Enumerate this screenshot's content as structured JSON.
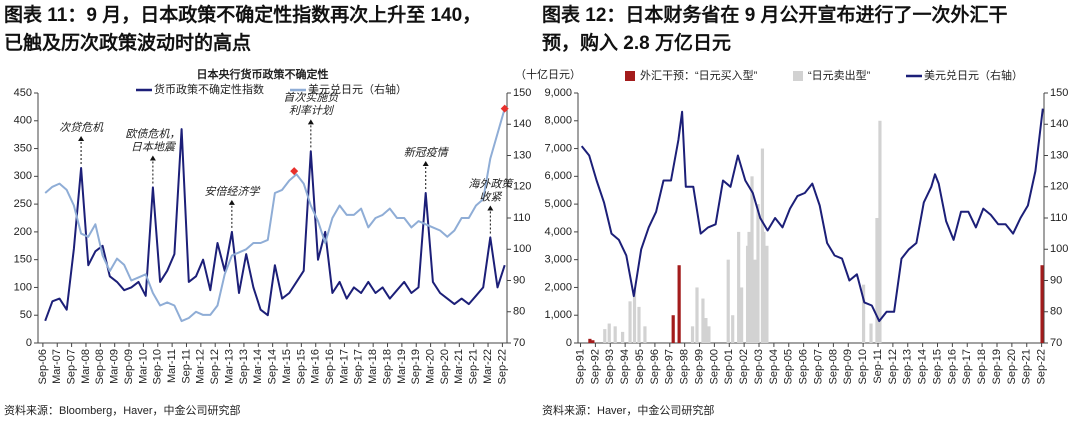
{
  "chart_data": [
    {
      "type": "line",
      "title": [
        "图表 11：9 月，日本政策不确定性指数再次上升至 140，",
        "已触及历次政策波动时的高点"
      ],
      "subtitle": "日本央行货币政策不确定性",
      "source": "资料来源：Bloomberg，Haver，中金公司研究部",
      "xlim": [
        2006.5,
        2022.83
      ],
      "ylim": [
        0,
        450
      ],
      "y2lim": [
        70,
        150
      ],
      "yticks": [
        0,
        50,
        100,
        150,
        200,
        250,
        300,
        350,
        400,
        450
      ],
      "y2ticks": [
        70,
        80,
        90,
        100,
        110,
        120,
        130,
        140,
        150
      ],
      "xticks": [
        {
          "value": 2006.67,
          "label": "Sep-06"
        },
        {
          "value": 2007.17,
          "label": "Mar-07"
        },
        {
          "value": 2007.67,
          "label": "Sep-07"
        },
        {
          "value": 2008.17,
          "label": "Mar-08"
        },
        {
          "value": 2008.67,
          "label": "Sep-08"
        },
        {
          "value": 2009.17,
          "label": "Mar-09"
        },
        {
          "value": 2009.67,
          "label": "Sep-09"
        },
        {
          "value": 2010.17,
          "label": "Mar-10"
        },
        {
          "value": 2010.67,
          "label": "Sep-10"
        },
        {
          "value": 2011.17,
          "label": "Mar-11"
        },
        {
          "value": 2011.67,
          "label": "Sep-11"
        },
        {
          "value": 2012.17,
          "label": "Mar-12"
        },
        {
          "value": 2012.67,
          "label": "Sep-12"
        },
        {
          "value": 2013.17,
          "label": "Mar-13"
        },
        {
          "value": 2013.67,
          "label": "Sep-13"
        },
        {
          "value": 2014.17,
          "label": "Mar-14"
        },
        {
          "value": 2014.67,
          "label": "Sep-14"
        },
        {
          "value": 2015.17,
          "label": "Mar-15"
        },
        {
          "value": 2015.67,
          "label": "Sep-15"
        },
        {
          "value": 2016.17,
          "label": "Mar-16"
        },
        {
          "value": 2016.67,
          "label": "Sep-16"
        },
        {
          "value": 2017.17,
          "label": "Mar-17"
        },
        {
          "value": 2017.67,
          "label": "Sep-17"
        },
        {
          "value": 2018.17,
          "label": "Mar-18"
        },
        {
          "value": 2018.67,
          "label": "Sep-18"
        },
        {
          "value": 2019.17,
          "label": "Mar-19"
        },
        {
          "value": 2019.67,
          "label": "Sep-19"
        },
        {
          "value": 2020.17,
          "label": "Mar-20"
        },
        {
          "value": 2020.67,
          "label": "Sep-20"
        },
        {
          "value": 2021.17,
          "label": "Mar-21"
        },
        {
          "value": 2021.67,
          "label": "Sep-21"
        },
        {
          "value": 2022.17,
          "label": "Mar-22"
        },
        {
          "value": 2022.67,
          "label": "Sep-22"
        }
      ],
      "x": [
        2006.75,
        2007,
        2007.25,
        2007.5,
        2007.75,
        2008,
        2008.25,
        2008.5,
        2008.75,
        2009,
        2009.25,
        2009.5,
        2009.75,
        2010,
        2010.25,
        2010.5,
        2010.75,
        2011,
        2011.25,
        2011.5,
        2011.75,
        2012,
        2012.25,
        2012.5,
        2012.75,
        2013,
        2013.25,
        2013.5,
        2013.75,
        2014,
        2014.25,
        2014.5,
        2014.75,
        2015,
        2015.25,
        2015.5,
        2015.75,
        2016,
        2016.25,
        2016.5,
        2016.75,
        2017,
        2017.25,
        2017.5,
        2017.75,
        2018,
        2018.25,
        2018.5,
        2018.75,
        2019,
        2019.25,
        2019.5,
        2019.75,
        2020,
        2020.25,
        2020.5,
        2020.75,
        2021,
        2021.25,
        2021.5,
        2021.75,
        2022,
        2022.25,
        2022.5,
        2022.75
      ],
      "series": [
        {
          "name": "货币政策不确定性指数",
          "color": "#1c1f78",
          "values": [
            40,
            75,
            80,
            60,
            170,
            315,
            140,
            165,
            175,
            120,
            110,
            95,
            100,
            110,
            85,
            280,
            110,
            130,
            160,
            385,
            110,
            120,
            150,
            95,
            180,
            130,
            200,
            90,
            160,
            100,
            60,
            50,
            140,
            80,
            90,
            110,
            130,
            345,
            150,
            200,
            90,
            110,
            80,
            100,
            90,
            110,
            90,
            100,
            80,
            95,
            110,
            90,
            100,
            270,
            110,
            90,
            80,
            70,
            80,
            70,
            85,
            100,
            190,
            100,
            140
          ]
        },
        {
          "name": "美元兑日元（右轴）",
          "color": "#8fadd6",
          "axis": "y2",
          "values": [
            118,
            120,
            121,
            119,
            114,
            105,
            104,
            108,
            98,
            93,
            97,
            95,
            90,
            91,
            92,
            86,
            82,
            83,
            82,
            77,
            78,
            80,
            79,
            79,
            82,
            92,
            98,
            99,
            100,
            102,
            102,
            103,
            118,
            119,
            122,
            124,
            121,
            114,
            109,
            102,
            110,
            114,
            111,
            111,
            113,
            107,
            110,
            111,
            113,
            110,
            110,
            107,
            109,
            108,
            107,
            106,
            104,
            106,
            110,
            110,
            114,
            116,
            129,
            137,
            145
          ]
        }
      ],
      "highlights": {
        "color": "#e8302c",
        "axis": "y2",
        "x": [
          2015.42,
          2022.75
        ],
        "values": [
          125,
          145
        ]
      },
      "annotations": [
        {
          "text": [
            "次贷危机"
          ],
          "x": 2008,
          "y": 315
        },
        {
          "text": [
            "欧债危机，",
            "日本地震"
          ],
          "x": 2010.5,
          "y": 280
        },
        {
          "text": [
            "安倍经济学"
          ],
          "x": 2013.25,
          "y": 200
        },
        {
          "text": [
            "首次实施负",
            "利率计划"
          ],
          "x": 2016,
          "y": 345
        },
        {
          "text": [
            "新冠疫情"
          ],
          "x": 2020,
          "y": 270
        },
        {
          "text": [
            "海外政策",
            "收紧"
          ],
          "x": 2022.25,
          "y": 190
        }
      ]
    },
    {
      "type": "combo",
      "title": [
        "图表 12：日本财务省在 9 月公开宣布进行了一次外汇干",
        "预，购入 2.8 万亿日元"
      ],
      "ylabel": "（十亿日元）",
      "source": "资料来源：Haver，中金公司研究部",
      "xlim": [
        1991.5,
        2022.83
      ],
      "ylim": [
        0,
        9000
      ],
      "y2lim": [
        70,
        150
      ],
      "yticks": [
        0,
        {
          "value": 1000,
          "label": "1,000"
        },
        {
          "value": 2000,
          "label": "2,000"
        },
        {
          "value": 3000,
          "label": "3,000"
        },
        {
          "value": 4000,
          "label": "4,000"
        },
        {
          "value": 5000,
          "label": "5,000"
        },
        {
          "value": 6000,
          "label": "6,000"
        },
        {
          "value": 7000,
          "label": "7,000"
        },
        {
          "value": 8000,
          "label": "8,000"
        },
        {
          "value": 9000,
          "label": "9,000"
        }
      ],
      "y2ticks": [
        70,
        80,
        90,
        100,
        110,
        120,
        130,
        140,
        150
      ],
      "xticks": [
        {
          "value": 1991.67,
          "label": "Sep-91"
        },
        {
          "value": 1992.67,
          "label": "Sep-92"
        },
        {
          "value": 1993.67,
          "label": "Sep-93"
        },
        {
          "value": 1994.67,
          "label": "Sep-94"
        },
        {
          "value": 1995.67,
          "label": "Sep-95"
        },
        {
          "value": 1996.67,
          "label": "Sep-96"
        },
        {
          "value": 1997.67,
          "label": "Sep-97"
        },
        {
          "value": 1998.67,
          "label": "Sep-98"
        },
        {
          "value": 1999.67,
          "label": "Sep-99"
        },
        {
          "value": 2000.67,
          "label": "Sep-00"
        },
        {
          "value": 2001.67,
          "label": "Sep-01"
        },
        {
          "value": 2002.67,
          "label": "Sep-02"
        },
        {
          "value": 2003.67,
          "label": "Sep-03"
        },
        {
          "value": 2004.67,
          "label": "Sep-04"
        },
        {
          "value": 2005.67,
          "label": "Sep-05"
        },
        {
          "value": 2006.67,
          "label": "Sep-06"
        },
        {
          "value": 2007.67,
          "label": "Sep-07"
        },
        {
          "value": 2008.67,
          "label": "Sep-08"
        },
        {
          "value": 2009.67,
          "label": "Sep-09"
        },
        {
          "value": 2010.67,
          "label": "Sep-10"
        },
        {
          "value": 2011.67,
          "label": "Sep-11"
        },
        {
          "value": 2012.67,
          "label": "Sep-12"
        },
        {
          "value": 2013.67,
          "label": "Sep-13"
        },
        {
          "value": 2014.67,
          "label": "Sep-14"
        },
        {
          "value": 2015.67,
          "label": "Sep-15"
        },
        {
          "value": 2016.67,
          "label": "Sep-16"
        },
        {
          "value": 2017.67,
          "label": "Sep-17"
        },
        {
          "value": 2018.67,
          "label": "Sep-18"
        },
        {
          "value": 2019.67,
          "label": "Sep-19"
        },
        {
          "value": 2020.67,
          "label": "Sep-20"
        },
        {
          "value": 2021.67,
          "label": "Sep-21"
        },
        {
          "value": 2022.67,
          "label": "Sep-22"
        }
      ],
      "bars": [
        {
          "name": "外汇干预：“日元买入型”",
          "color": "#a31c1c",
          "x": [
            1992.3,
            1992.5,
            1997.9,
            1998.3,
            2022.7
          ],
          "values": [
            150,
            100,
            1000,
            2800,
            2800
          ]
        },
        {
          "name": "“日元卖出型”",
          "color": "#d2d2d2",
          "x": [
            1993.3,
            1993.6,
            1994.0,
            1994.5,
            1995.0,
            1995.3,
            1995.6,
            1996.0,
            1999.2,
            1999.5,
            1999.9,
            2000.1,
            2000.3,
            2001.6,
            2001.9,
            2002.3,
            2002.5,
            2002.9,
            2003.0,
            2003.2,
            2003.4,
            2003.6,
            2003.9,
            2004.0,
            2004.2,
            2010.7,
            2011.2,
            2011.6,
            2011.8
          ],
          "values": [
            500,
            700,
            600,
            400,
            1500,
            1900,
            1300,
            600,
            600,
            2000,
            1600,
            900,
            600,
            3000,
            1000,
            4000,
            2000,
            3500,
            4000,
            6000,
            3000,
            5000,
            7000,
            4000,
            3500,
            2100,
            700,
            4500,
            8000
          ]
        }
      ],
      "series": [
        {
          "name": "美元兑日元（右轴）",
          "color": "#1c1f78",
          "axis": "y2",
          "x": [
            1991.75,
            1992.25,
            1992.75,
            1993.25,
            1993.75,
            1994.25,
            1994.75,
            1995.25,
            1995.75,
            1996.25,
            1996.75,
            1997.25,
            1997.75,
            1998.25,
            1998.5,
            1998.75,
            1999.25,
            1999.75,
            2000.25,
            2000.75,
            2001.25,
            2001.75,
            2002.25,
            2002.75,
            2003.25,
            2003.75,
            2004.25,
            2004.75,
            2005.25,
            2005.75,
            2006.25,
            2006.75,
            2007.25,
            2007.75,
            2008.25,
            2008.75,
            2009.25,
            2009.75,
            2010.25,
            2010.75,
            2011.25,
            2011.75,
            2012.25,
            2012.75,
            2013.25,
            2013.75,
            2014.25,
            2014.75,
            2015.25,
            2015.5,
            2015.75,
            2016.25,
            2016.75,
            2017.25,
            2017.75,
            2018.25,
            2018.75,
            2019.25,
            2019.75,
            2020.25,
            2020.75,
            2021.25,
            2021.75,
            2022.25,
            2022.75
          ],
          "values": [
            133,
            130,
            122,
            115,
            105,
            103,
            98,
            85,
            100,
            107,
            112,
            122,
            122,
            135,
            144,
            120,
            120,
            105,
            107,
            108,
            122,
            120,
            130,
            122,
            118,
            110,
            106,
            110,
            107,
            113,
            117,
            118,
            121,
            114,
            102,
            98,
            97,
            90,
            92,
            83,
            82,
            77,
            80,
            80,
            97,
            100,
            102,
            115,
            120,
            124,
            121,
            109,
            103,
            112,
            112,
            107,
            113,
            111,
            108,
            108,
            105,
            110,
            114,
            125,
            145
          ]
        }
      ]
    }
  ]
}
